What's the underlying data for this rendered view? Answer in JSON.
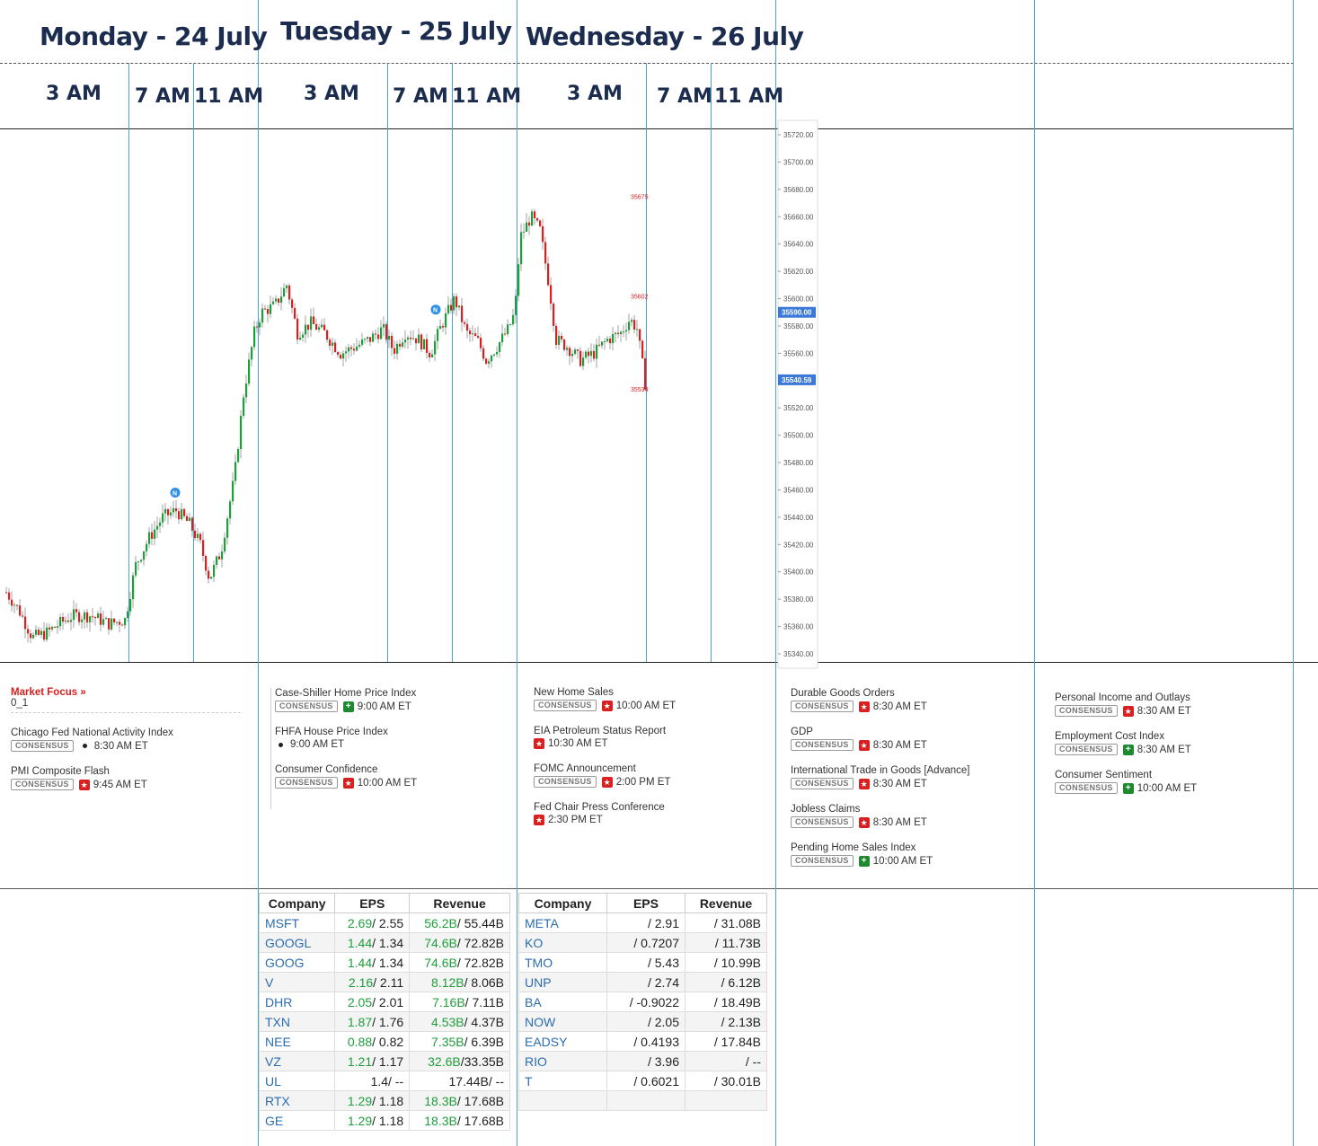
{
  "days": [
    {
      "title": "Monday - 24 July",
      "times": [
        "3 AM",
        "7 AM",
        "11 AM"
      ]
    },
    {
      "title": "Tuesday - 25 July",
      "times": [
        "3 AM",
        "7 AM",
        "11 AM"
      ]
    },
    {
      "title": "Wednesday - 26 July",
      "times": [
        "3 AM",
        "7 AM",
        "11 AM"
      ]
    }
  ],
  "chart": {
    "price_axis": [
      "35720.00",
      "35700.00",
      "35680.00",
      "35660.00",
      "35640.00",
      "35620.00",
      "35600.00",
      "35580.00",
      "35560.00",
      "35540.00",
      "35520.00",
      "35500.00",
      "35480.00",
      "35460.00",
      "35440.00",
      "35420.00",
      "35400.00",
      "35380.00",
      "35360.00",
      "35340.00"
    ],
    "current_price": "35590.00",
    "highlight_price": "35540.59",
    "annotations": [
      "35675",
      "35602",
      "35534"
    ],
    "news_marker": "N",
    "up_color": "#1e9e3a",
    "down_color": "#d7201f"
  },
  "events": {
    "monday": {
      "market_focus": "Market Focus",
      "market_focus_arrow": "»",
      "market_focus_sub": "0_1",
      "items": [
        {
          "name": "Chicago Fed National Activity Index",
          "consensus": true,
          "icon": "dot",
          "time": "8:30 AM ET"
        },
        {
          "name": "PMI Composite Flash",
          "consensus": true,
          "icon": "star",
          "time": "9:45 AM ET"
        }
      ]
    },
    "tuesday": {
      "items": [
        {
          "name": "Case-Shiller Home Price Index",
          "consensus": true,
          "icon": "plus",
          "time": "9:00 AM ET"
        },
        {
          "name": "FHFA House Price Index",
          "consensus": false,
          "icon": "dot",
          "time": "9:00 AM ET"
        },
        {
          "name": "Consumer Confidence",
          "consensus": true,
          "icon": "star",
          "time": "10:00 AM ET"
        }
      ]
    },
    "wednesday": {
      "items": [
        {
          "name": "New Home Sales",
          "consensus": true,
          "icon": "star",
          "time": "10:00 AM ET"
        },
        {
          "name": "EIA Petroleum Status Report",
          "consensus": false,
          "icon": "star",
          "time": "10:30 AM ET"
        },
        {
          "name": "FOMC Announcement",
          "consensus": true,
          "icon": "star",
          "time": "2:00 PM ET"
        },
        {
          "name": "Fed Chair Press Conference",
          "consensus": false,
          "icon": "star",
          "time": "2:30 PM ET"
        }
      ]
    },
    "thursday": {
      "items": [
        {
          "name": "Durable Goods Orders",
          "consensus": true,
          "icon": "star",
          "time": "8:30 AM ET"
        },
        {
          "name": "GDP",
          "consensus": true,
          "icon": "star",
          "time": "8:30 AM ET"
        },
        {
          "name": "International Trade in Goods [Advance]",
          "consensus": true,
          "icon": "star",
          "time": "8:30 AM ET"
        },
        {
          "name": "Jobless Claims",
          "consensus": true,
          "icon": "star",
          "time": "8:30 AM ET"
        },
        {
          "name": "Pending Home Sales Index",
          "consensus": true,
          "icon": "plus",
          "time": "10:00 AM ET"
        }
      ]
    },
    "friday": {
      "items": [
        {
          "name": "Personal Income and Outlays",
          "consensus": true,
          "icon": "star",
          "time": "8:30 AM ET"
        },
        {
          "name": "Employment Cost Index",
          "consensus": true,
          "icon": "plus",
          "time": "8:30 AM ET"
        },
        {
          "name": "Consumer Sentiment",
          "consensus": true,
          "icon": "plus",
          "time": "10:00 AM ET"
        }
      ]
    },
    "consensus_label": "CONSENSUS"
  },
  "earnings": {
    "headers": [
      "Company",
      "EPS",
      "Revenue"
    ],
    "tuesday": [
      {
        "sym": "MSFT",
        "eps_a": "2.69",
        "eps_e": "/ 2.55",
        "rev_a": "56.2B",
        "rev_e": "/ 55.44B"
      },
      {
        "sym": "GOOGL",
        "eps_a": "1.44",
        "eps_e": "/ 1.34",
        "rev_a": "74.6B",
        "rev_e": "/ 72.82B"
      },
      {
        "sym": "GOOG",
        "eps_a": "1.44",
        "eps_e": "/ 1.34",
        "rev_a": "74.6B",
        "rev_e": "/ 72.82B"
      },
      {
        "sym": "V",
        "eps_a": "2.16",
        "eps_e": "/ 2.11",
        "rev_a": "8.12B",
        "rev_e": "/ 8.06B"
      },
      {
        "sym": "DHR",
        "eps_a": "2.05",
        "eps_e": "/ 2.01",
        "rev_a": "7.16B",
        "rev_e": "/ 7.11B"
      },
      {
        "sym": "TXN",
        "eps_a": "1.87",
        "eps_e": "/ 1.76",
        "rev_a": "4.53B",
        "rev_e": "/ 4.37B"
      },
      {
        "sym": "NEE",
        "eps_a": "0.88",
        "eps_e": "/ 0.82",
        "rev_a": "7.35B",
        "rev_e": "/ 6.39B"
      },
      {
        "sym": "VZ",
        "eps_a": "1.21",
        "eps_e": "/ 1.17",
        "rev_a": "32.6B",
        "rev_e": "/33.35B"
      },
      {
        "sym": "UL",
        "eps_a": "",
        "eps_e": "1.4/ --",
        "rev_a": "",
        "rev_e": "17.44B/ --"
      },
      {
        "sym": "RTX",
        "eps_a": "1.29",
        "eps_e": "/ 1.18",
        "rev_a": "18.3B",
        "rev_e": "/ 17.68B"
      },
      {
        "sym": "GE",
        "eps_a": "1.29",
        "eps_e": "/ 1.18",
        "rev_a": "18.3B",
        "rev_e": "/ 17.68B"
      }
    ],
    "wednesday": [
      {
        "sym": "META",
        "eps": "/ 2.91",
        "rev": "/ 31.08B"
      },
      {
        "sym": "KO",
        "eps": "/ 0.7207",
        "rev": "/ 11.73B"
      },
      {
        "sym": "TMO",
        "eps": "/ 5.43",
        "rev": "/ 10.99B"
      },
      {
        "sym": "UNP",
        "eps": "/ 2.74",
        "rev": "/ 6.12B"
      },
      {
        "sym": "BA",
        "eps": "/ -0.9022",
        "rev": "/ 18.49B"
      },
      {
        "sym": "NOW",
        "eps": "/ 2.05",
        "rev": "/ 2.13B"
      },
      {
        "sym": "EADSY",
        "eps": "/ 0.4193",
        "rev": "/ 17.84B"
      },
      {
        "sym": "RIO",
        "eps": "/ 3.96",
        "rev": "/ --"
      },
      {
        "sym": "T",
        "eps": "/ 0.6021",
        "rev": "/ 30.01B"
      },
      {
        "sym": "",
        "eps": "",
        "rev": ""
      }
    ]
  }
}
